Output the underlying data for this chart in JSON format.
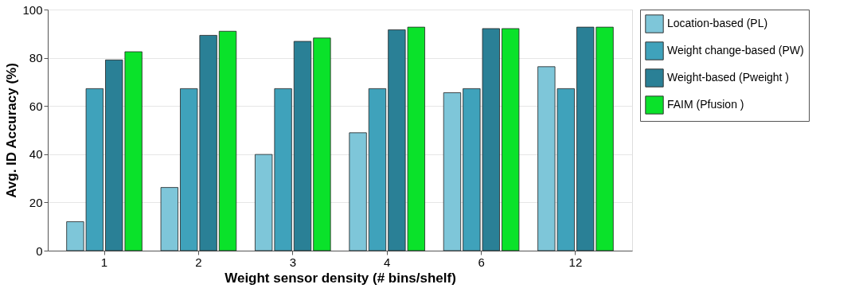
{
  "chart_data": {
    "type": "bar",
    "xlabel": "Weight sensor density (# bins/shelf)",
    "ylabel": "Avg. ID Accuracy (%)",
    "categories": [
      "1",
      "2",
      "3",
      "4",
      "6",
      "12"
    ],
    "series": [
      {
        "name": "Location-based (PL)",
        "color": "#7ec6d9",
        "values": [
          12.0,
          26.2,
          39.9,
          48.9,
          65.5,
          76.3
        ]
      },
      {
        "name": "Weight change-based (PW)",
        "color": "#3fa2bb",
        "values": [
          67.2,
          67.2,
          67.2,
          67.2,
          67.2,
          67.2
        ]
      },
      {
        "name": "Weight-based (Pweight )",
        "color": "#2a8096",
        "values": [
          79.1,
          89.3,
          86.8,
          91.6,
          92.1,
          92.7
        ]
      },
      {
        "name": "FAIM (Pfusion )",
        "color": "#0ae22a",
        "values": [
          82.5,
          91.0,
          88.2,
          92.7,
          92.1,
          92.7
        ]
      }
    ],
    "ylim": [
      0,
      100
    ],
    "yticks": [
      0,
      20,
      40,
      60,
      80,
      100
    ],
    "grid": "y",
    "legend": "right"
  }
}
